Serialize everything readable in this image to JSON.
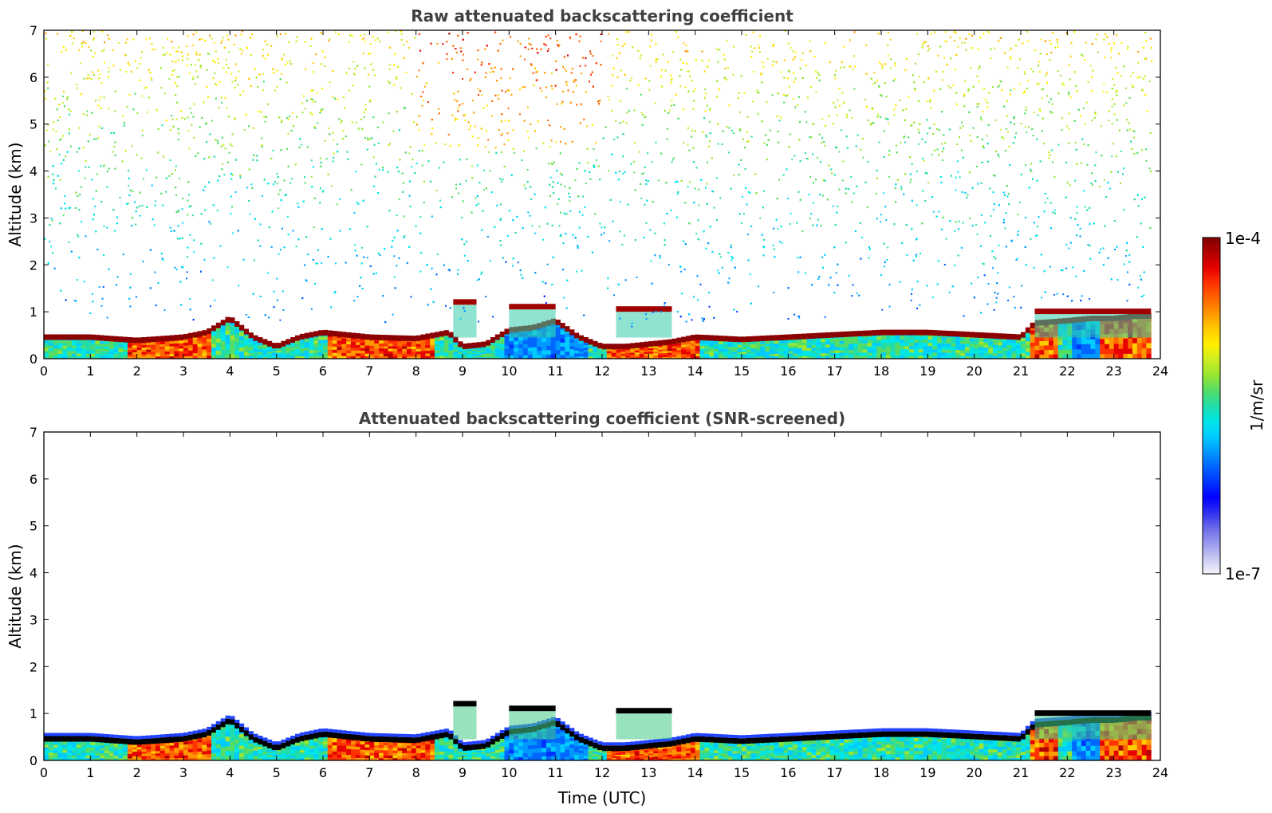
{
  "figure": {
    "colorbar": {
      "label": "1/m/sr",
      "max_label": "1e-4",
      "min_label": "1e-7",
      "scale": "log",
      "range": [
        1e-07,
        0.0001
      ]
    },
    "colormap": [
      "#f4f4fb",
      "#c9c9f2",
      "#9a9af0",
      "#6a6ae8",
      "#2f2ff0",
      "#0000ff",
      "#0033ff",
      "#0066ff",
      "#0099ff",
      "#00ccff",
      "#00e5e5",
      "#22ddaa",
      "#55dd66",
      "#99e633",
      "#ccee22",
      "#ffee00",
      "#ffcc00",
      "#ff9900",
      "#ff6600",
      "#ff3300",
      "#e60000",
      "#b30000",
      "#800000"
    ]
  },
  "chart_data": [
    {
      "type": "heatmap",
      "title": "Raw attenuated backscattering coefficient",
      "xlabel": "",
      "ylabel": "Altitude (km)",
      "xlim": [
        0,
        24
      ],
      "ylim": [
        0,
        7
      ],
      "xticks": [
        0,
        1,
        2,
        3,
        4,
        5,
        6,
        7,
        8,
        9,
        10,
        11,
        12,
        13,
        14,
        15,
        16,
        17,
        18,
        19,
        20,
        21,
        22,
        23,
        24
      ],
      "yticks": [
        0,
        1,
        2,
        3,
        4,
        5,
        6,
        7
      ],
      "colorbar_range": [
        1e-07,
        0.0001
      ],
      "colorbar_label": "1/m/sr",
      "data_extent_hours": [
        0,
        23.8
      ],
      "aerosol_layer_top_km": {
        "t": [
          0,
          1,
          2,
          3,
          3.5,
          4,
          4.5,
          5,
          5.5,
          6,
          7,
          8,
          8.7,
          9,
          9.5,
          10,
          10.5,
          11,
          11.5,
          12,
          12.5,
          13,
          13.5,
          14,
          15,
          16,
          17,
          18,
          19,
          20,
          21,
          21.3,
          22,
          22.5,
          23,
          23.5,
          23.8
        ],
        "z": [
          0.45,
          0.45,
          0.38,
          0.45,
          0.55,
          0.85,
          0.45,
          0.25,
          0.45,
          0.55,
          0.45,
          0.42,
          0.55,
          0.25,
          0.3,
          0.6,
          0.65,
          0.8,
          0.45,
          0.25,
          0.25,
          0.3,
          0.35,
          0.45,
          0.4,
          0.45,
          0.5,
          0.55,
          0.55,
          0.5,
          0.45,
          0.75,
          0.8,
          0.85,
          0.85,
          0.9,
          0.9
        ]
      },
      "elevated_layers": [
        {
          "t": [
            8.8,
            9.3
          ],
          "z_km": 1.2
        },
        {
          "t": [
            10.0,
            11.0
          ],
          "z_km": 1.1
        },
        {
          "t": [
            12.3,
            13.5
          ],
          "z_km": 1.05
        },
        {
          "t": [
            21.3,
            23.8
          ],
          "z_km": 1.0
        }
      ]
    },
    {
      "type": "heatmap",
      "title": "Attenuated backscattering coefficient (SNR-screened)",
      "xlabel": "Time (UTC)",
      "ylabel": "Altitude (km)",
      "xlim": [
        0,
        24
      ],
      "ylim": [
        0,
        7
      ],
      "xticks": [
        0,
        1,
        2,
        3,
        4,
        5,
        6,
        7,
        8,
        9,
        10,
        11,
        12,
        13,
        14,
        15,
        16,
        17,
        18,
        19,
        20,
        21,
        22,
        23,
        24
      ],
      "yticks": [
        0,
        1,
        2,
        3,
        4,
        5,
        6,
        7
      ],
      "colorbar_range": [
        1e-07,
        0.0001
      ],
      "colorbar_label": "1/m/sr",
      "data_extent_hours": [
        0,
        23.8
      ],
      "aerosol_layer_top_km": {
        "t": [
          0,
          1,
          2,
          3,
          3.5,
          4,
          4.5,
          5,
          5.5,
          6,
          7,
          8,
          8.7,
          9,
          9.5,
          10,
          10.5,
          11,
          11.5,
          12,
          12.5,
          13,
          13.5,
          14,
          15,
          16,
          17,
          18,
          19,
          20,
          21,
          21.3,
          22,
          22.5,
          23,
          23.5,
          23.8
        ],
        "z": [
          0.45,
          0.45,
          0.38,
          0.45,
          0.55,
          0.85,
          0.45,
          0.25,
          0.45,
          0.55,
          0.45,
          0.42,
          0.55,
          0.25,
          0.3,
          0.6,
          0.65,
          0.8,
          0.45,
          0.25,
          0.25,
          0.3,
          0.35,
          0.45,
          0.4,
          0.45,
          0.5,
          0.55,
          0.55,
          0.5,
          0.45,
          0.75,
          0.8,
          0.85,
          0.85,
          0.9,
          0.9
        ]
      }
    }
  ]
}
